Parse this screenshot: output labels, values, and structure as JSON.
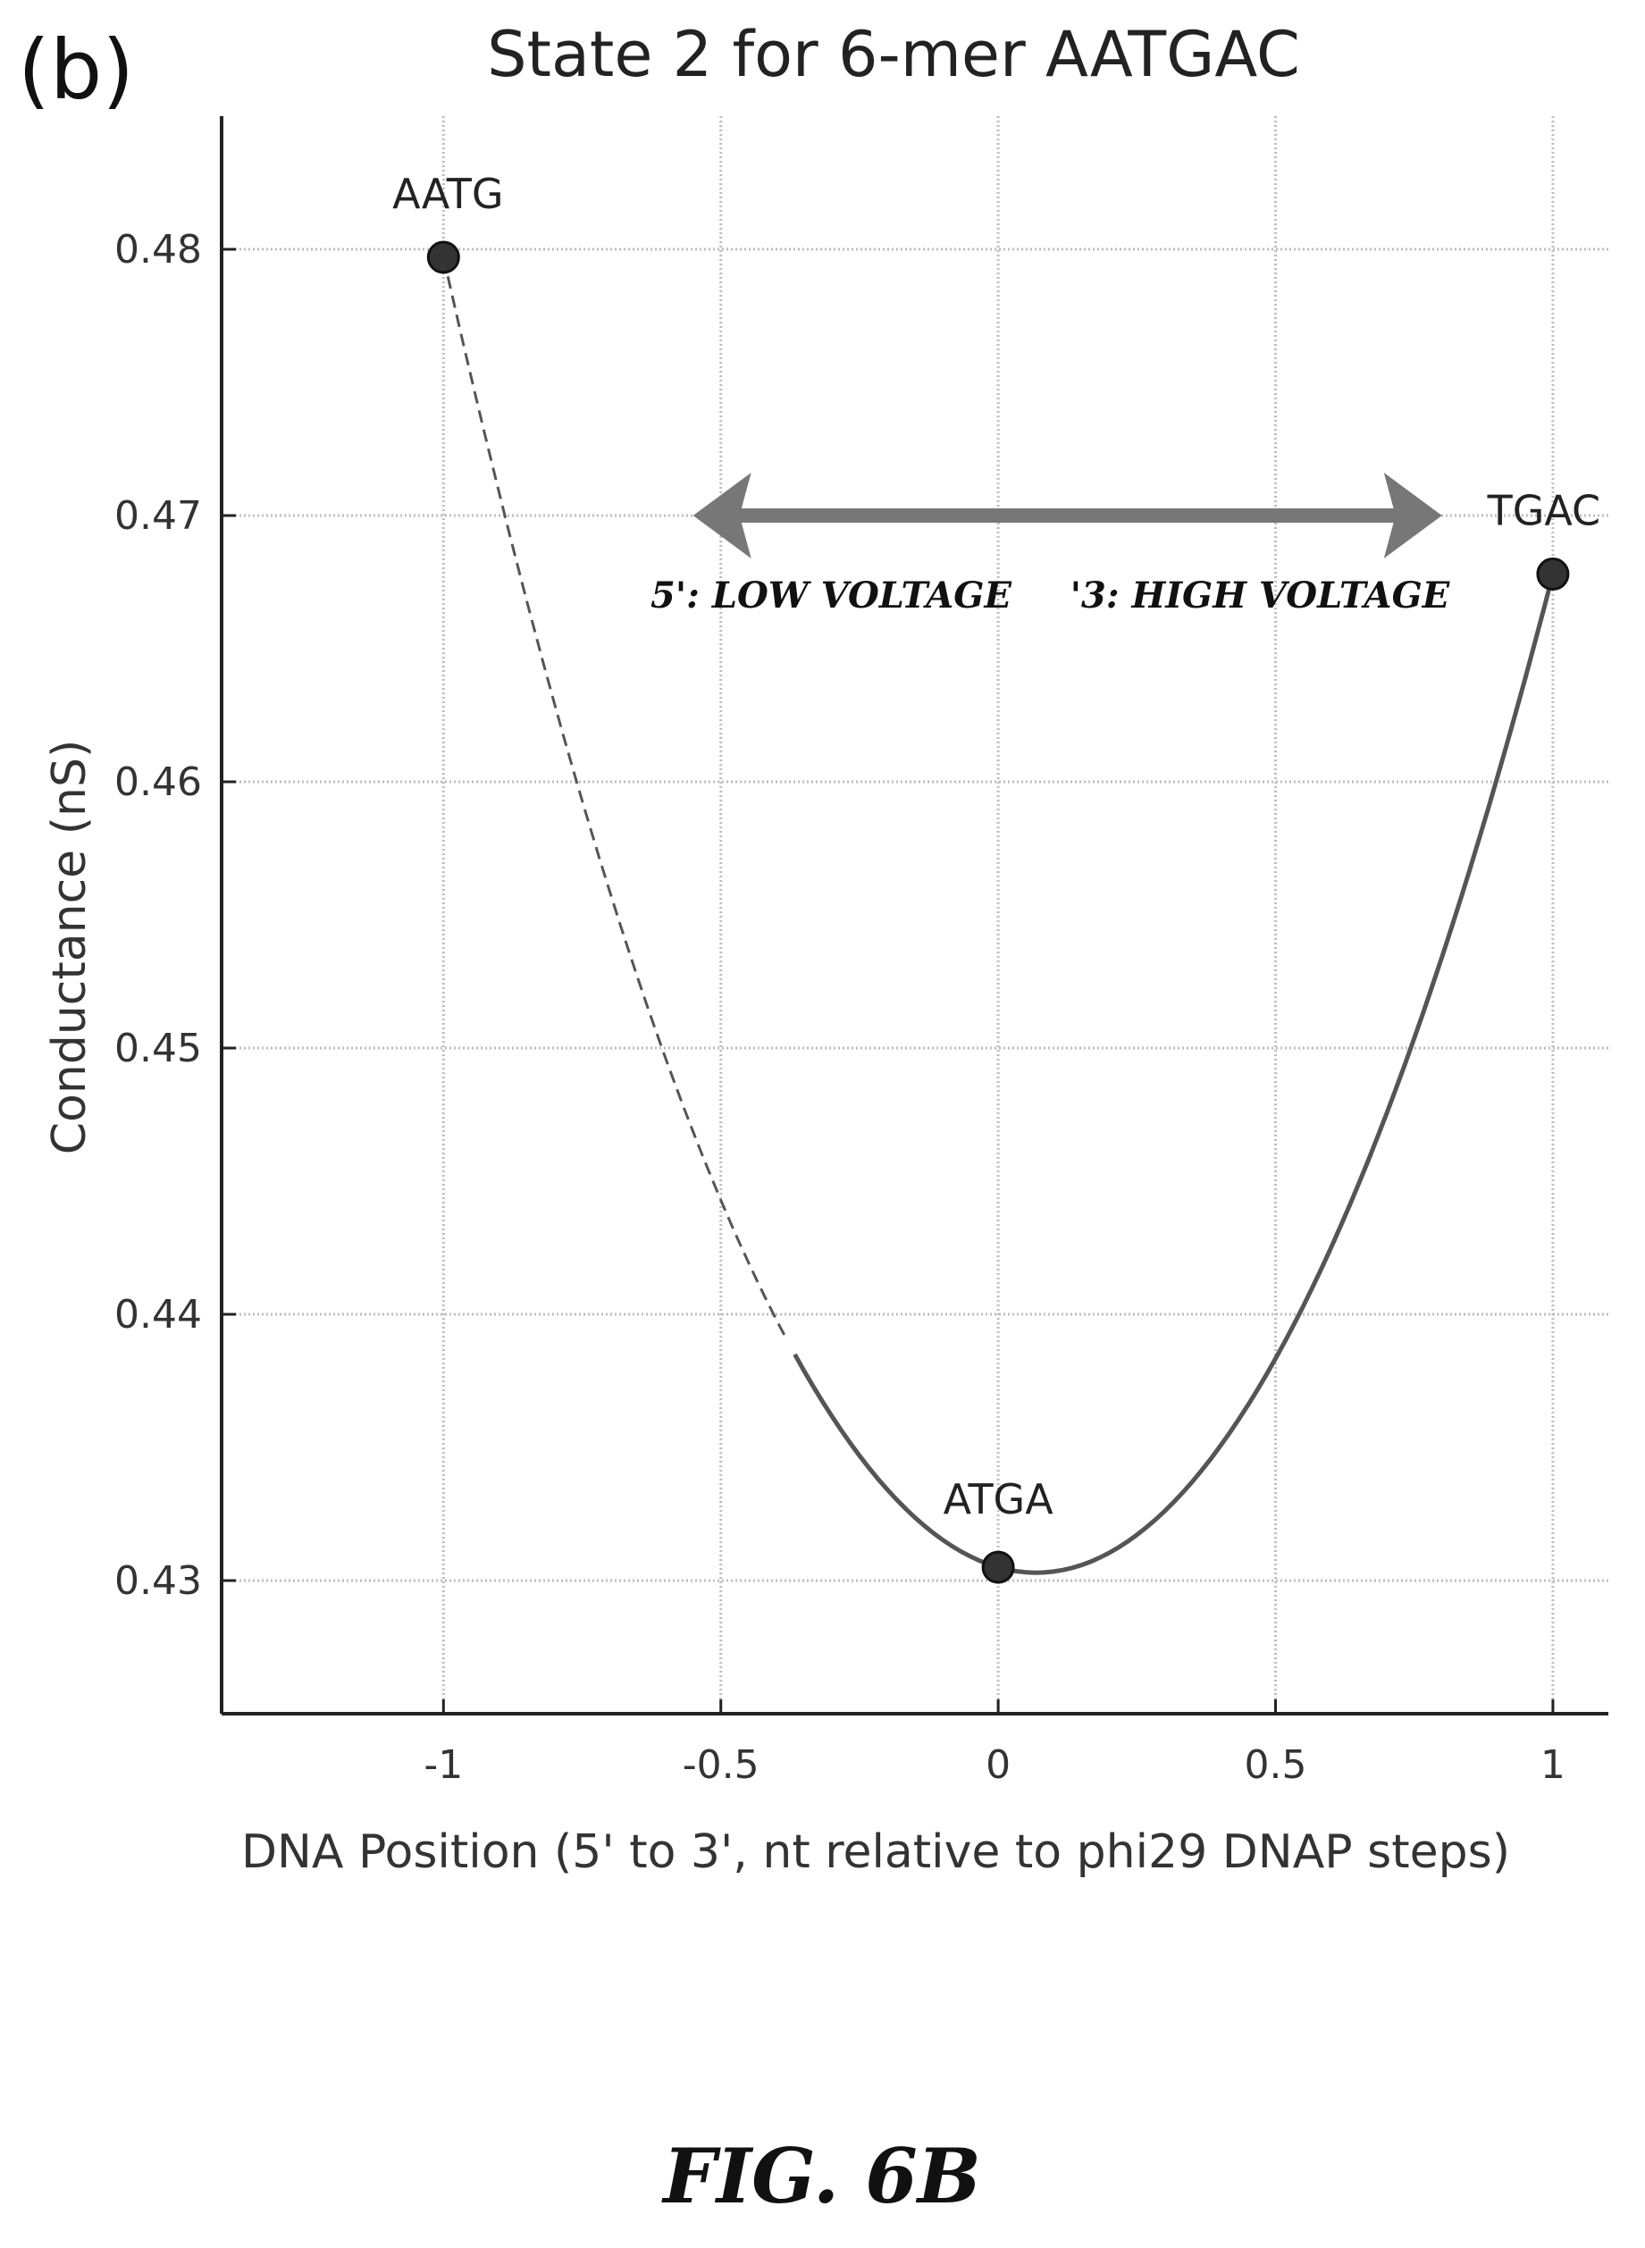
{
  "panel_label": "(b)",
  "figure_caption": "FIG. 6B",
  "chart_data": {
    "type": "line",
    "title": "State 2 for 6-mer AATGAC",
    "xlabel": "DNA Position (5' to 3', nt relative to phi29 DNAP steps)",
    "ylabel": "Conductance (nS)",
    "xlim": [
      -1.4,
      1.1
    ],
    "ylim": [
      0.425,
      0.485
    ],
    "xticks": [
      -1,
      -0.5,
      0,
      0.5,
      1
    ],
    "xtick_labels": [
      "-1",
      "-0.5",
      "0",
      "0.5",
      "1"
    ],
    "yticks": [
      0.43,
      0.44,
      0.45,
      0.46,
      0.47,
      0.48
    ],
    "ytick_labels": [
      "0.43",
      "0.44",
      "0.45",
      "0.46",
      "0.47",
      "0.48"
    ],
    "grid": true,
    "points": [
      {
        "label": "AATG",
        "x": -1,
        "y": 0.4797
      },
      {
        "label": "ATGA",
        "x": 0,
        "y": 0.4305
      },
      {
        "label": "TGAC",
        "x": 1,
        "y": 0.4678
      }
    ],
    "curve_note": "quadratic fit through points",
    "annotations": {
      "left": "5': LOW VOLTAGE",
      "right": "'3: HIGH VOLTAGE"
    },
    "arrow_x_range": [
      -0.55,
      0.8
    ],
    "arrow_y": 0.47,
    "colors": {
      "curve": "#555555",
      "marker": "#333333",
      "arrow": "#777777",
      "grid": "#bdbdbd"
    }
  }
}
